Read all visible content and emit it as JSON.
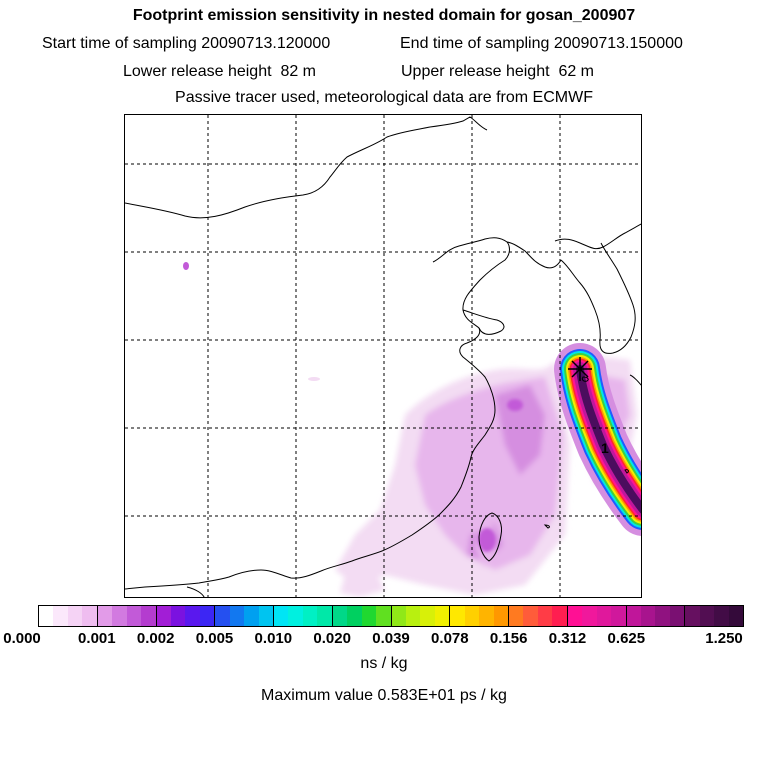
{
  "title": "Footprint emission sensitivity in nested domain for gosan_200907",
  "start_label": "Start time of sampling",
  "start_value": "20090713.120000",
  "end_label": "End time of sampling",
  "end_value": "20090713.150000",
  "lower_label": "Lower release height",
  "lower_value": "82 m",
  "upper_label": "Upper release height",
  "upper_value": "62 m",
  "note": "Passive tracer used, meteorological data are from ECMWF",
  "map": {
    "contour_label": "1",
    "receptor_symbol": "star",
    "colors": {
      "coast": "#000000",
      "grid": "#000000",
      "plume_core": "#4b0d5e",
      "plume_magenta": "#c0179c",
      "plume_pink": "#ff1493",
      "plume_red": "#ff2a2a",
      "plume_orange": "#ff9900",
      "plume_yellow": "#f2ee00",
      "plume_green": "#3fd03f",
      "plume_cyan": "#00e5e5",
      "plume_blue": "#1f5cff",
      "low_light": "#f3dcf3",
      "low_mid": "#e7b6ec",
      "low_strong": "#d58ee0"
    }
  },
  "colorbar": {
    "ticks": [
      "0.000",
      "0.001",
      "0.002",
      "0.005",
      "0.010",
      "0.020",
      "0.039",
      "0.078",
      "0.156",
      "0.312",
      "0.625",
      "1.250"
    ],
    "segments": [
      [
        "#ffffff",
        "#fbe8fb",
        "#f5d3f5",
        "#efbdf0"
      ],
      [
        "#e29be8",
        "#d27ae0",
        "#c25ad8",
        "#b43ccf"
      ],
      [
        "#a21ed6",
        "#7b12e0",
        "#5a18ee",
        "#3c26f4"
      ],
      [
        "#2550f0",
        "#1278f0",
        "#00a0f0",
        "#00c4f0"
      ],
      [
        "#00e5f5",
        "#00f0e0",
        "#00f0c4",
        "#00e8a8"
      ],
      [
        "#00d888",
        "#00d060",
        "#20d830",
        "#60e020"
      ],
      [
        "#90e818",
        "#b8f010",
        "#d8f008",
        "#f0f000"
      ],
      [
        "#ffe800",
        "#ffd000",
        "#ffb400",
        "#ff9800"
      ],
      [
        "#ff7a20",
        "#ff5c3a",
        "#ff3c46",
        "#ff1e50"
      ],
      [
        "#ff1094",
        "#f0189c",
        "#e0189c",
        "#d0189c"
      ],
      [
        "#c0169a",
        "#a8148e",
        "#901280",
        "#7a1072"
      ],
      [
        "#661060",
        "#520e52",
        "#420c46",
        "#340a3a"
      ]
    ]
  },
  "units": "ns / kg",
  "max_value": "Maximum value  0.583E+01 ps / kg"
}
